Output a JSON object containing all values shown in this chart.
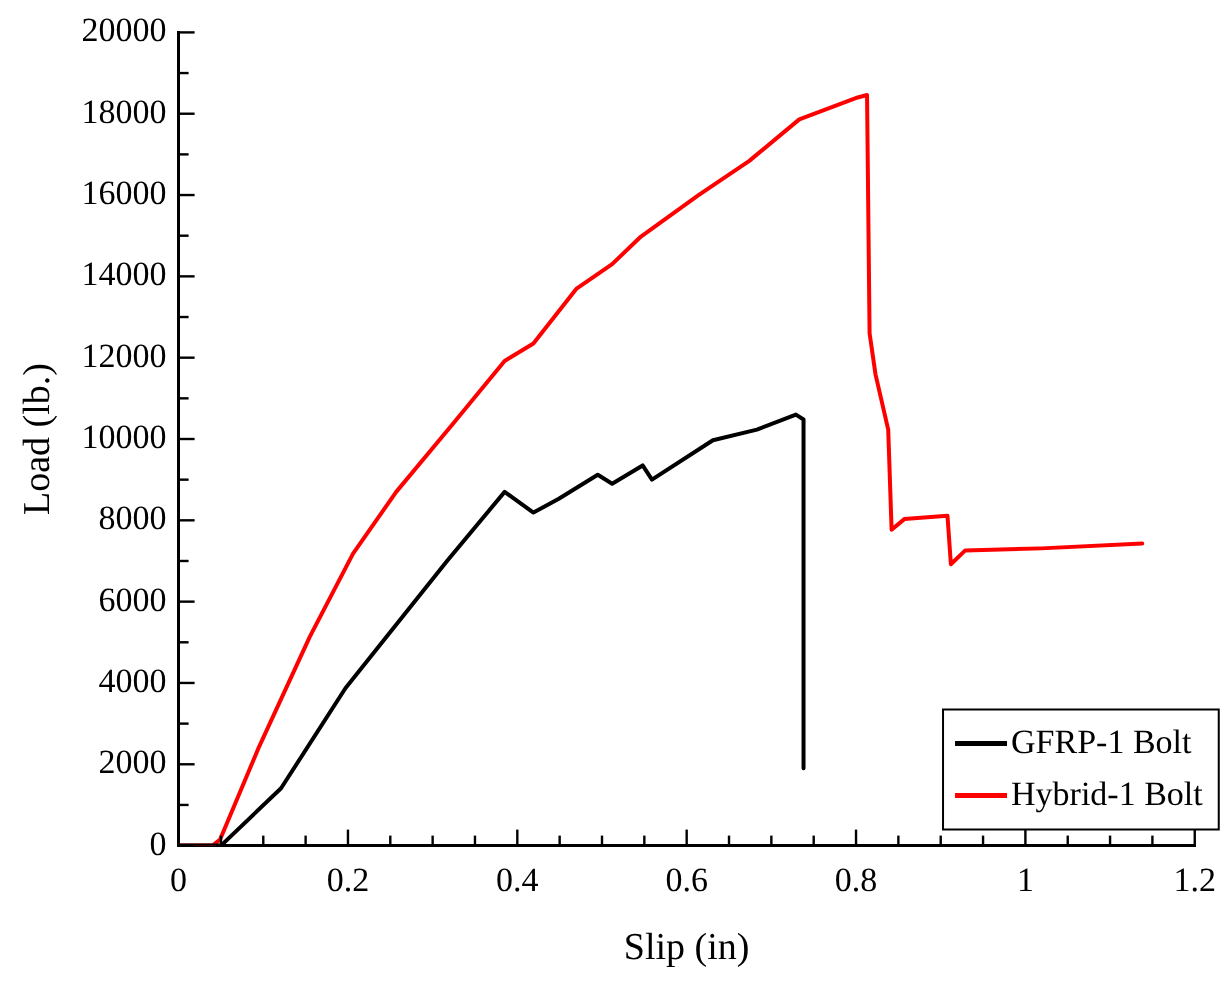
{
  "chart_data": {
    "type": "line",
    "xlabel": "Slip (in)",
    "ylabel": "Load (lb.)",
    "xlim": [
      0,
      1.2
    ],
    "ylim": [
      0,
      20000
    ],
    "xticks": [
      0,
      {
        "value": 0.05,
        "label": null
      },
      0.2,
      {
        "value": 0.1,
        "label": null
      },
      {
        "value": 0.15,
        "label": null
      },
      {
        "value": 0.25,
        "label": null
      },
      {
        "value": 0.3,
        "label": null
      },
      {
        "value": 0.35,
        "label": null
      },
      0.4,
      {
        "value": 0.45,
        "label": null
      },
      {
        "value": 0.5,
        "label": null
      },
      {
        "value": 0.55,
        "label": null
      },
      0.6,
      {
        "value": 0.65,
        "label": null
      },
      {
        "value": 0.7,
        "label": null
      },
      {
        "value": 0.75,
        "label": null
      },
      0.8,
      {
        "value": 0.85,
        "label": null
      },
      {
        "value": 0.9,
        "label": null
      },
      {
        "value": 0.95,
        "label": null
      },
      1,
      {
        "value": 1.05,
        "label": null
      },
      {
        "value": 1.1,
        "label": null
      },
      {
        "value": 1.15,
        "label": null
      },
      1.2
    ],
    "yticks": [
      0,
      {
        "value": 1000,
        "label": null
      },
      2000,
      {
        "value": 3000,
        "label": null
      },
      4000,
      {
        "value": 5000,
        "label": null
      },
      6000,
      {
        "value": 7000,
        "label": null
      },
      8000,
      {
        "value": 9000,
        "label": null
      },
      10000,
      {
        "value": 11000,
        "label": null
      },
      12000,
      {
        "value": 13000,
        "label": null
      },
      14000,
      {
        "value": 15000,
        "label": null
      },
      16000,
      {
        "value": 17000,
        "label": null
      },
      18000,
      {
        "value": 19000,
        "label": null
      },
      20000
    ],
    "grid": false,
    "legend": "bottom right",
    "marker": "none",
    "line_style": "solid",
    "series": [
      {
        "name": "GFRP-1 Bolt",
        "color": "#000000",
        "x": [
          0,
          0.05,
          0.121,
          0.197,
          0.317,
          0.385,
          0.419,
          0.449,
          0.495,
          0.512,
          0.548,
          0.559,
          0.631,
          0.683,
          0.729,
          0.738,
          0.738
        ],
        "values": [
          0,
          0,
          1410,
          3870,
          7000,
          8700,
          8190,
          8530,
          9120,
          8900,
          9350,
          9000,
          9970,
          10230,
          10600,
          10480,
          1900
        ]
      },
      {
        "name": "Hybrid-1 Bolt",
        "color": "#ff0000",
        "x": [
          0,
          0.04,
          0.049,
          0.095,
          0.155,
          0.206,
          0.257,
          0.325,
          0.385,
          0.419,
          0.47,
          0.512,
          0.546,
          0.614,
          0.674,
          0.733,
          0.802,
          0.813,
          0.816,
          0.823,
          0.838,
          0.842,
          0.857,
          0.908,
          0.912,
          0.929,
          1.019,
          1.138
        ],
        "values": [
          0,
          0,
          150,
          2430,
          5140,
          7180,
          8700,
          10400,
          11920,
          12350,
          13700,
          14300,
          14980,
          16000,
          16840,
          17860,
          18400,
          18460,
          12600,
          11590,
          10230,
          7770,
          8030,
          8110,
          6920,
          7260,
          7310,
          7430
        ]
      }
    ]
  }
}
